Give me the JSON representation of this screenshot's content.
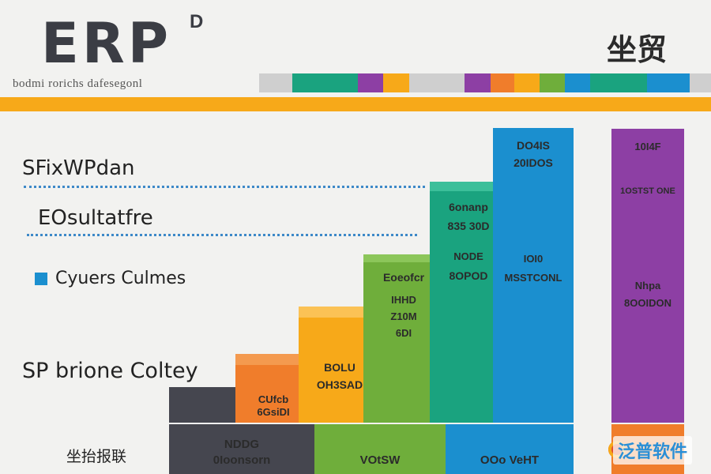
{
  "header": {
    "title": "ERP",
    "title_sup": "D",
    "subtitle": "bodmi rorichs dafesegonl",
    "badge": "坐贸"
  },
  "colors": {
    "stripe": [
      "#cfcfcf",
      "#1aa37f",
      "#1aa37f",
      "#8d3fa4",
      "#f7a919",
      "#cfcfcf",
      "#8d3fa4",
      "#f07d2b",
      "#f7a919",
      "#6fae3b",
      "#1b8fcf",
      "#1aa37f",
      "#1aa37f",
      "#1b8fcf",
      "#cfcfcf"
    ],
    "accent": "#f7a919"
  },
  "sidebar": {
    "label_1": "SFixWPdan",
    "label_2": "EOsultatfre",
    "legend_label": "Cyuers Culmes",
    "label_3": "SP brione Coltey",
    "bottom_label": "坐抬报联"
  },
  "watermark": "泛普软件",
  "chart_data": {
    "type": "bar",
    "note_text_is_garbled": true,
    "bars": [
      {
        "label_1": "",
        "label_2": "",
        "label_3": "",
        "color": "#45464f",
        "top_color": "#2e2f36",
        "value": 1
      },
      {
        "label_1": "CUfcb",
        "label_2": "6GsiDI",
        "label_3": "",
        "color": "#f07d2b",
        "top_color": "#f49a4f",
        "value": 2
      },
      {
        "label_1": "BOLU",
        "label_2": "OH3SAD",
        "label_3": "",
        "color": "#f7a919",
        "top_color": "#fbc255",
        "value": 3
      },
      {
        "label_1": "Eoeofcr",
        "label_2": "IHHD",
        "label_3": "Z10M",
        "label_4": "6DI",
        "color": "#6fae3b",
        "top_color": "#8cc65a",
        "value": 4
      },
      {
        "label_1": "6onanp",
        "label_2": "835 30D",
        "label_3": "NODE",
        "label_4": "8OPOD",
        "color": "#1aa37f",
        "top_color": "#3cbf9a",
        "value": 5
      },
      {
        "label_1": "DO4IS",
        "label_2": "20IDOS",
        "label_3": "IOI0",
        "label_4": "MSSTCONL",
        "color": "#1b8fcf",
        "top_color": "#3aa6e0",
        "value": 6
      },
      {
        "label_1": "10I4F",
        "label_2": "1OSTST ONE",
        "label_3": "Nhpa",
        "label_4": "8OOIDON",
        "color": "#8d3fa4",
        "top_color": "#a758bd",
        "value": 6
      }
    ],
    "base_segments": [
      {
        "label_1": "NDDG",
        "label_2": "0Ioonsorn",
        "color": "#45464f"
      },
      {
        "label_1": "VOtSW",
        "label_2": "",
        "color": "#6fae3b"
      },
      {
        "label_1": "OOo VeHT",
        "label_2": "",
        "color": "#1b8fcf"
      },
      {
        "label_1": "",
        "label_2": "",
        "color": "#f07d2b"
      }
    ]
  }
}
